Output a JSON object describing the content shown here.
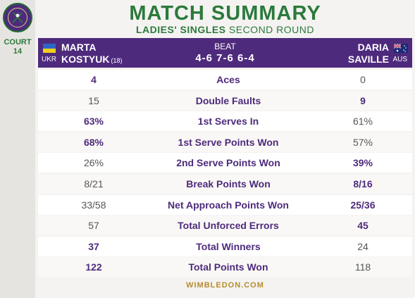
{
  "sidebar": {
    "court_label": "COURT",
    "court_number": "14"
  },
  "header": {
    "title": "MATCH SUMMARY",
    "event": "LADIES' SINGLES",
    "round": "SECOND ROUND"
  },
  "match": {
    "player1": {
      "first": "MARTA",
      "last": "KOSTYUK",
      "seed": "(18)",
      "country": "UKR"
    },
    "player2": {
      "first": "DARIA",
      "last": "SAVILLE",
      "country": "AUS"
    },
    "result_word": "BEAT",
    "score": "4-6 7-6 6-4"
  },
  "stats": [
    {
      "label": "Aces",
      "p1": "4",
      "p2": "0",
      "winner": "p1"
    },
    {
      "label": "Double Faults",
      "p1": "15",
      "p2": "9",
      "winner": "p2"
    },
    {
      "label": "1st Serves In",
      "p1": "63%",
      "p2": "61%",
      "winner": "p1"
    },
    {
      "label": "1st Serve Points Won",
      "p1": "68%",
      "p2": "57%",
      "winner": "p1"
    },
    {
      "label": "2nd Serve Points Won",
      "p1": "26%",
      "p2": "39%",
      "winner": "p2"
    },
    {
      "label": "Break Points Won",
      "p1": "8/21",
      "p2": "8/16",
      "winner": "p2"
    },
    {
      "label": "Net Approach Points Won",
      "p1": "33/58",
      "p2": "25/36",
      "winner": "p2"
    },
    {
      "label": "Total Unforced Errors",
      "p1": "57",
      "p2": "45",
      "winner": "p2"
    },
    {
      "label": "Total Winners",
      "p1": "37",
      "p2": "24",
      "winner": "p1"
    },
    {
      "label": "Total Points Won",
      "p1": "122",
      "p2": "118",
      "winner": "p1"
    }
  ],
  "footer": {
    "site": "WIMBLEDON.COM"
  },
  "colors": {
    "purple": "#4e2a7c",
    "green": "#2c7a3c",
    "gold": "#b78c2e"
  },
  "icons": {
    "logo": "wimbledon-logo-icon",
    "flag1": "ukraine-flag-icon",
    "flag2": "australia-flag-icon"
  }
}
